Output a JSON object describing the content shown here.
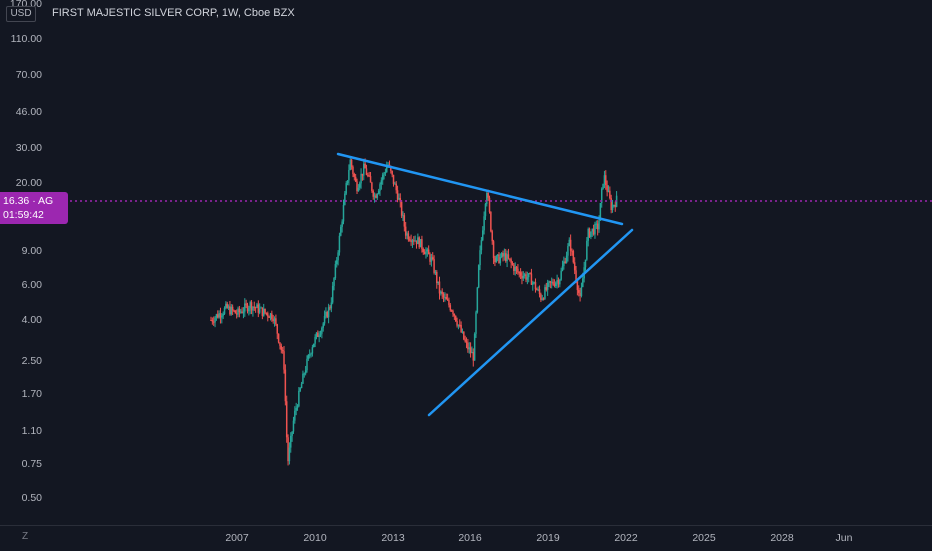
{
  "header": {
    "currency": "USD",
    "title": "FIRST MAJESTIC SILVER CORP, 1W, Cboe BZX"
  },
  "price_tag": {
    "price": "16.36",
    "symbol": "AG",
    "countdown": "01:59:42"
  },
  "bottom": {
    "tz_label": "Z"
  },
  "colors": {
    "background": "#131722",
    "up": "#26a69a",
    "down": "#ef5350",
    "trendline": "#2196f3",
    "price_line": "#9c27b0",
    "text": "#b2b5be"
  },
  "chart_data": {
    "type": "candlestick",
    "title": "FIRST MAJESTIC SILVER CORP, 1W, Cboe BZX",
    "y_scale": "log",
    "y_ticks": [
      "170.00",
      "110.00",
      "70.00",
      "46.00",
      "30.00",
      "20.00",
      "9.00",
      "6.00",
      "4.00",
      "2.50",
      "1.70",
      "1.10",
      "0.75",
      "0.50"
    ],
    "x_ticks": [
      "2007",
      "2010",
      "2013",
      "2016",
      "2019",
      "2022",
      "2025",
      "2028",
      "Jun"
    ],
    "last_price": 16.36,
    "price_path": [
      {
        "t": 2006.0,
        "p": 4.0
      },
      {
        "t": 2006.6,
        "p": 4.6
      },
      {
        "t": 2007.0,
        "p": 4.3
      },
      {
        "t": 2007.5,
        "p": 4.8
      },
      {
        "t": 2008.0,
        "p": 4.4
      },
      {
        "t": 2008.4,
        "p": 4.2
      },
      {
        "t": 2008.8,
        "p": 2.5
      },
      {
        "t": 2008.95,
        "p": 0.75
      },
      {
        "t": 2009.2,
        "p": 1.3
      },
      {
        "t": 2009.6,
        "p": 2.2
      },
      {
        "t": 2009.9,
        "p": 3.0
      },
      {
        "t": 2010.3,
        "p": 3.8
      },
      {
        "t": 2010.6,
        "p": 4.8
      },
      {
        "t": 2010.9,
        "p": 9.5
      },
      {
        "t": 2011.2,
        "p": 19.0
      },
      {
        "t": 2011.35,
        "p": 26.0
      },
      {
        "t": 2011.6,
        "p": 19.0
      },
      {
        "t": 2011.9,
        "p": 24.0
      },
      {
        "t": 2012.3,
        "p": 17.0
      },
      {
        "t": 2012.8,
        "p": 25.0
      },
      {
        "t": 2013.2,
        "p": 17.0
      },
      {
        "t": 2013.5,
        "p": 11.0
      },
      {
        "t": 2014.0,
        "p": 10.0
      },
      {
        "t": 2014.5,
        "p": 8.0
      },
      {
        "t": 2014.8,
        "p": 5.5
      },
      {
        "t": 2015.3,
        "p": 4.5
      },
      {
        "t": 2015.8,
        "p": 3.0
      },
      {
        "t": 2016.1,
        "p": 2.6
      },
      {
        "t": 2016.3,
        "p": 7.5
      },
      {
        "t": 2016.6,
        "p": 19.0
      },
      {
        "t": 2016.9,
        "p": 8.0
      },
      {
        "t": 2017.3,
        "p": 8.5
      },
      {
        "t": 2017.8,
        "p": 7.0
      },
      {
        "t": 2018.3,
        "p": 6.5
      },
      {
        "t": 2018.7,
        "p": 5.2
      },
      {
        "t": 2019.0,
        "p": 6.0
      },
      {
        "t": 2019.4,
        "p": 6.5
      },
      {
        "t": 2019.8,
        "p": 10.0
      },
      {
        "t": 2020.2,
        "p": 5.0
      },
      {
        "t": 2020.5,
        "p": 11.0
      },
      {
        "t": 2020.9,
        "p": 12.0
      },
      {
        "t": 2021.1,
        "p": 22.0
      },
      {
        "t": 2021.4,
        "p": 15.0
      },
      {
        "t": 2021.6,
        "p": 16.36
      }
    ]
  }
}
